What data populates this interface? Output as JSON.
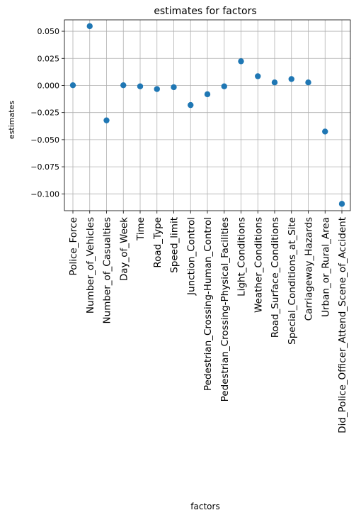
{
  "chart_data": {
    "type": "scatter",
    "title": "estimates for factors",
    "xlabel": "factors",
    "ylabel": "estimates",
    "categories": [
      "Police_Force",
      "Number_of_Vehicles",
      "Number_of_Casualties",
      "Day_of_Week",
      "Time",
      "Road_Type",
      "Speed_limit",
      "Junction_Control",
      "Pedestrian_Crossing-Human_Control",
      "Pedestrian_Crossing-Physical_Facilities",
      "Light_Conditions",
      "Weather_Conditions",
      "Road_Surface_Conditions",
      "Special_Conditions_at_Site",
      "Carriageway_Hazards",
      "Urban_or_Rural_Area",
      "Did_Police_Officer_Attend_Scene_of_Accident"
    ],
    "values": [
      0.0002,
      0.0547,
      -0.0322,
      0.0002,
      -0.0008,
      -0.0033,
      -0.0016,
      -0.0181,
      -0.0081,
      -0.0008,
      0.0223,
      0.0085,
      0.0028,
      0.0059,
      0.0028,
      -0.0425,
      -0.1092
    ],
    "yticks": [
      0.05,
      0.025,
      0.0,
      -0.025,
      -0.05,
      -0.075,
      -0.1
    ],
    "ytick_labels": [
      "0.050",
      "0.025",
      "0.000",
      "−0.025",
      "−0.050",
      "−0.075",
      "−0.100"
    ],
    "ylim": [
      -0.1155,
      0.0605
    ],
    "grid": true,
    "marker_color": "#1f77b4"
  }
}
